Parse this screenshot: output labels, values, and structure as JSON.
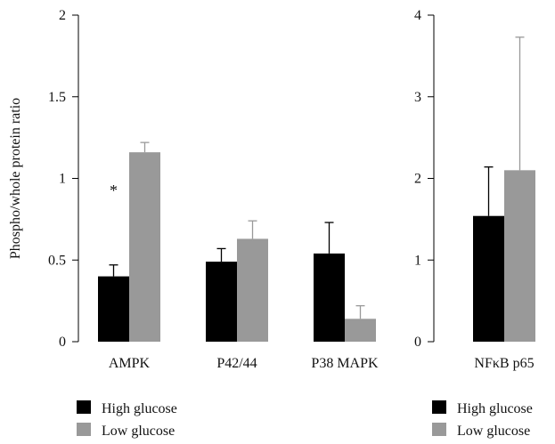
{
  "chart_data": [
    {
      "type": "bar",
      "ylabel": "Phospho/whole protein ratio",
      "categories": [
        "AMPK",
        "P42/44",
        "P38 MAPK"
      ],
      "ylim": [
        0,
        2
      ],
      "yticks": [
        "0",
        "0.5",
        "1",
        "1.5",
        "2"
      ],
      "grid": false,
      "legend_position": "bottom-left",
      "series": [
        {
          "name": "High glucose",
          "color": "#000000",
          "values": [
            0.4,
            0.49,
            0.54
          ],
          "errors": [
            0.07,
            0.08,
            0.19
          ]
        },
        {
          "name": "Low glucose",
          "color": "#999999",
          "values": [
            1.16,
            0.63,
            0.14
          ],
          "errors": [
            0.06,
            0.11,
            0.08
          ]
        }
      ],
      "annotations": [
        {
          "text": "*",
          "category": "AMPK"
        }
      ]
    },
    {
      "type": "bar",
      "categories": [
        "NFκB p65"
      ],
      "ylim": [
        0,
        4
      ],
      "yticks": [
        "0",
        "1",
        "2",
        "3",
        "4"
      ],
      "grid": false,
      "legend_position": "bottom-right",
      "series": [
        {
          "name": "High glucose",
          "color": "#000000",
          "values": [
            1.54
          ],
          "errors": [
            0.6
          ]
        },
        {
          "name": "Low glucose",
          "color": "#999999",
          "values": [
            2.1
          ],
          "errors": [
            1.63
          ]
        }
      ]
    }
  ]
}
